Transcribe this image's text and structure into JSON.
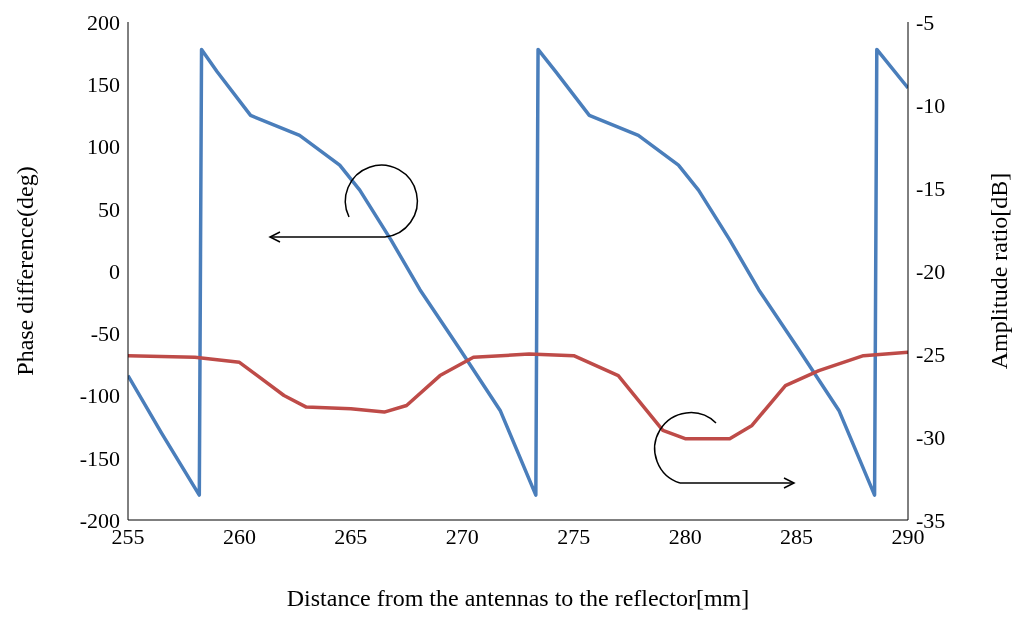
{
  "chart_data": {
    "type": "line",
    "xlabel": "Distance from the antennas to the reflector[mm]",
    "ylabel": "Phase difference(deg)",
    "y2label": "Amplitude ratio[dB]",
    "xlim": [
      255,
      290
    ],
    "xticks": [
      255,
      260,
      265,
      270,
      275,
      280,
      285,
      290
    ],
    "ylim": [
      -200,
      200
    ],
    "yticks": [
      -200,
      -150,
      -100,
      -50,
      0,
      50,
      100,
      150,
      200
    ],
    "y2lim": [
      -35,
      -5
    ],
    "y2ticks": [
      -35,
      -30,
      -25,
      -20,
      -15,
      -10,
      -5
    ],
    "grid": false,
    "marker": "none",
    "line_style": "solid",
    "series": [
      {
        "color": "#4a7ebb",
        "x": [
          255,
          256.5,
          258.2,
          258.3,
          259,
          260.5,
          262.7,
          264.5,
          265.4,
          266.8,
          268.1,
          269.9,
          271.7,
          273.3,
          273.4,
          274.2,
          275.7,
          277.9,
          279.7,
          280.6,
          282,
          283.3,
          285.1,
          286.9,
          288.5,
          288.6,
          290
        ],
        "values": [
          -84,
          -130,
          -180,
          178,
          160,
          125,
          109,
          85,
          65,
          25,
          -15,
          -63,
          -112,
          -180,
          178,
          160,
          125,
          109,
          85,
          65,
          25,
          -15,
          -63,
          -112,
          -180,
          178,
          147
        ]
      },
      {
        "color": "#be4b48",
        "axis": "y2",
        "x": [
          255,
          258,
          260,
          262,
          263,
          265,
          266.5,
          267.5,
          269,
          270.5,
          273,
          275,
          277,
          279,
          280,
          282,
          283,
          284.5,
          286,
          288,
          290
        ],
        "values": [
          -25.1,
          -25.2,
          -25.5,
          -27.5,
          -28.2,
          -28.3,
          -28.5,
          -28.1,
          -26.3,
          -25.2,
          -25,
          -25.1,
          -26.3,
          -29.6,
          -30.1,
          -30.1,
          -29.3,
          -26.9,
          -26,
          -25.1,
          -24.9
        ]
      }
    ]
  }
}
